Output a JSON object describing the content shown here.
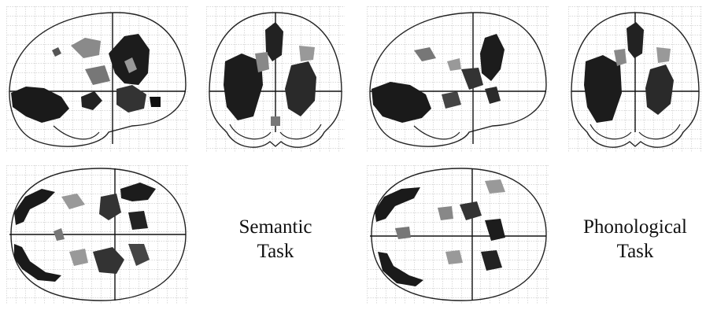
{
  "figure": {
    "tasks": [
      {
        "id": "semantic",
        "label_line1": "Semantic",
        "label_line2": "Task"
      },
      {
        "id": "phonological",
        "label_line1": "Phonological",
        "label_line2": "Task"
      }
    ],
    "views": [
      "sagittal-view",
      "coronal-view",
      "axial-view"
    ],
    "colors": {
      "background": "#ffffff",
      "grid": "#9a9a9a",
      "outline": "#222222",
      "activation_strong": "#111111",
      "activation_weak": "#9a9a9a"
    }
  }
}
